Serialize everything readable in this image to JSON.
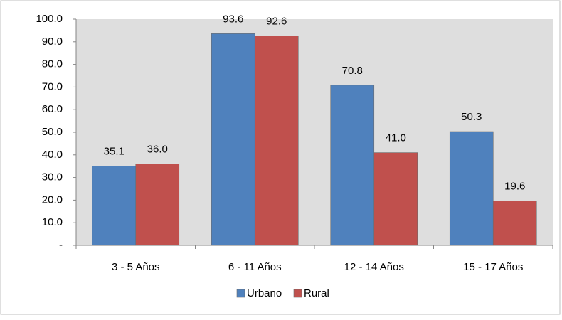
{
  "chart_data": {
    "type": "bar",
    "categories": [
      "3 - 5 Años",
      "6 - 11 Años",
      "12 - 14 Años",
      "15 - 17 Años"
    ],
    "series": [
      {
        "name": "Urbano",
        "color": "#4f81bd",
        "values": [
          35.1,
          93.6,
          70.8,
          50.3
        ],
        "value_labels": [
          "35.1",
          "93.6",
          "70.8",
          "50.3"
        ]
      },
      {
        "name": "Rural",
        "color": "#c0504d",
        "values": [
          36,
          92.6,
          41,
          19.6
        ],
        "value_labels": [
          "36.0",
          "92.6",
          "41.0",
          "19.6"
        ]
      }
    ],
    "ylim": [
      0,
      100
    ],
    "yticks": [
      {
        "value": 0,
        "label": "-"
      },
      {
        "value": 10,
        "label": "10.0"
      },
      {
        "value": 20,
        "label": "20.0"
      },
      {
        "value": 30,
        "label": "30.0"
      },
      {
        "value": 40,
        "label": "40.0"
      },
      {
        "value": 50,
        "label": "50.0"
      },
      {
        "value": 60,
        "label": "60.0"
      },
      {
        "value": 70,
        "label": "70.0"
      },
      {
        "value": 80,
        "label": "80.0"
      },
      {
        "value": 90,
        "label": "90.0"
      },
      {
        "value": 100,
        "label": "100.0"
      }
    ],
    "legend": "bottom"
  }
}
